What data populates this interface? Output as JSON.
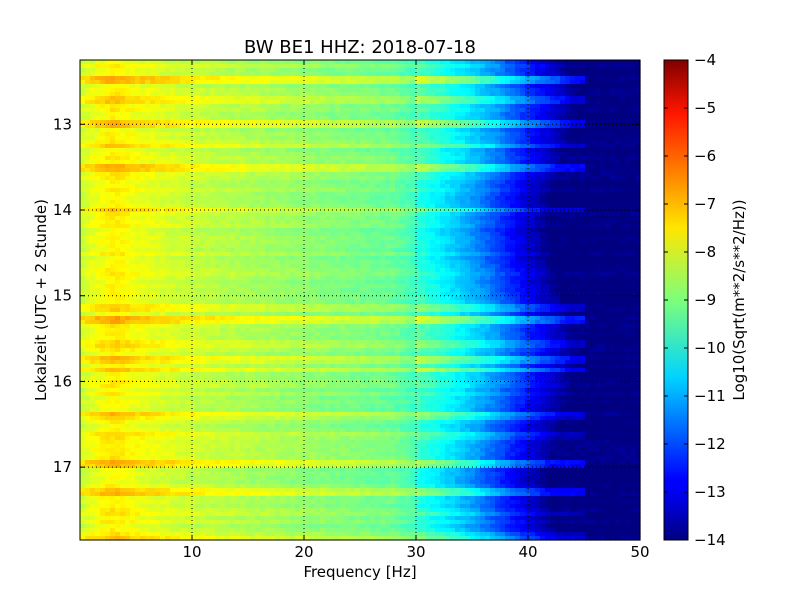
{
  "chart_data": {
    "type": "heatmap",
    "title": "BW BE1 HHZ: 2018-07-18",
    "xlabel": "Frequency [Hz]",
    "ylabel": "Lokalzeit (UTC + 2 Stunde)",
    "xlim": [
      0,
      50
    ],
    "ylim": [
      12.25,
      17.85
    ],
    "y_inverted": true,
    "x_ticks": [
      10,
      20,
      30,
      40,
      50
    ],
    "y_ticks": [
      13,
      14,
      15,
      16,
      17
    ],
    "grid": true,
    "colorbar": {
      "label": "Log10(Sqrt(m**2/s**2/Hz))",
      "range": [
        -14,
        -4
      ],
      "ticks": [
        -4,
        -5,
        -6,
        -7,
        -8,
        -9,
        -10,
        -11,
        -12,
        -13,
        -14
      ],
      "colormap": "jet"
    },
    "spectral_profile": {
      "freq_hz": [
        0,
        1,
        3,
        5,
        10,
        20,
        28,
        30,
        32,
        34,
        36,
        38,
        40,
        42,
        43,
        45,
        50
      ],
      "log10_amplitude": [
        -8.3,
        -8.0,
        -7.6,
        -7.9,
        -8.3,
        -8.8,
        -9.2,
        -9.6,
        -10.1,
        -10.6,
        -11.2,
        -12.0,
        -12.8,
        -13.5,
        -14.0,
        -14.0,
        -14.0
      ]
    },
    "bright_bands": [
      {
        "time": 12.5,
        "level": 1.3
      },
      {
        "time": 12.72,
        "level": 0.8
      },
      {
        "time": 13.0,
        "level": 1.0
      },
      {
        "time": 13.25,
        "level": 0.7
      },
      {
        "time": 13.5,
        "level": 1.2
      },
      {
        "time": 14.0,
        "level": 1.0
      },
      {
        "time": 15.15,
        "level": 0.7
      },
      {
        "time": 15.28,
        "level": 1.3
      },
      {
        "time": 15.55,
        "level": 0.6
      },
      {
        "time": 15.75,
        "level": 1.0
      },
      {
        "time": 15.87,
        "level": 1.1
      },
      {
        "time": 16.4,
        "level": 0.8
      },
      {
        "time": 16.65,
        "level": 0.6
      },
      {
        "time": 16.95,
        "level": 1.3
      },
      {
        "time": 17.3,
        "level": 1.2
      },
      {
        "time": 17.55,
        "level": 0.6
      },
      {
        "time": 17.8,
        "level": 0.7
      }
    ]
  }
}
